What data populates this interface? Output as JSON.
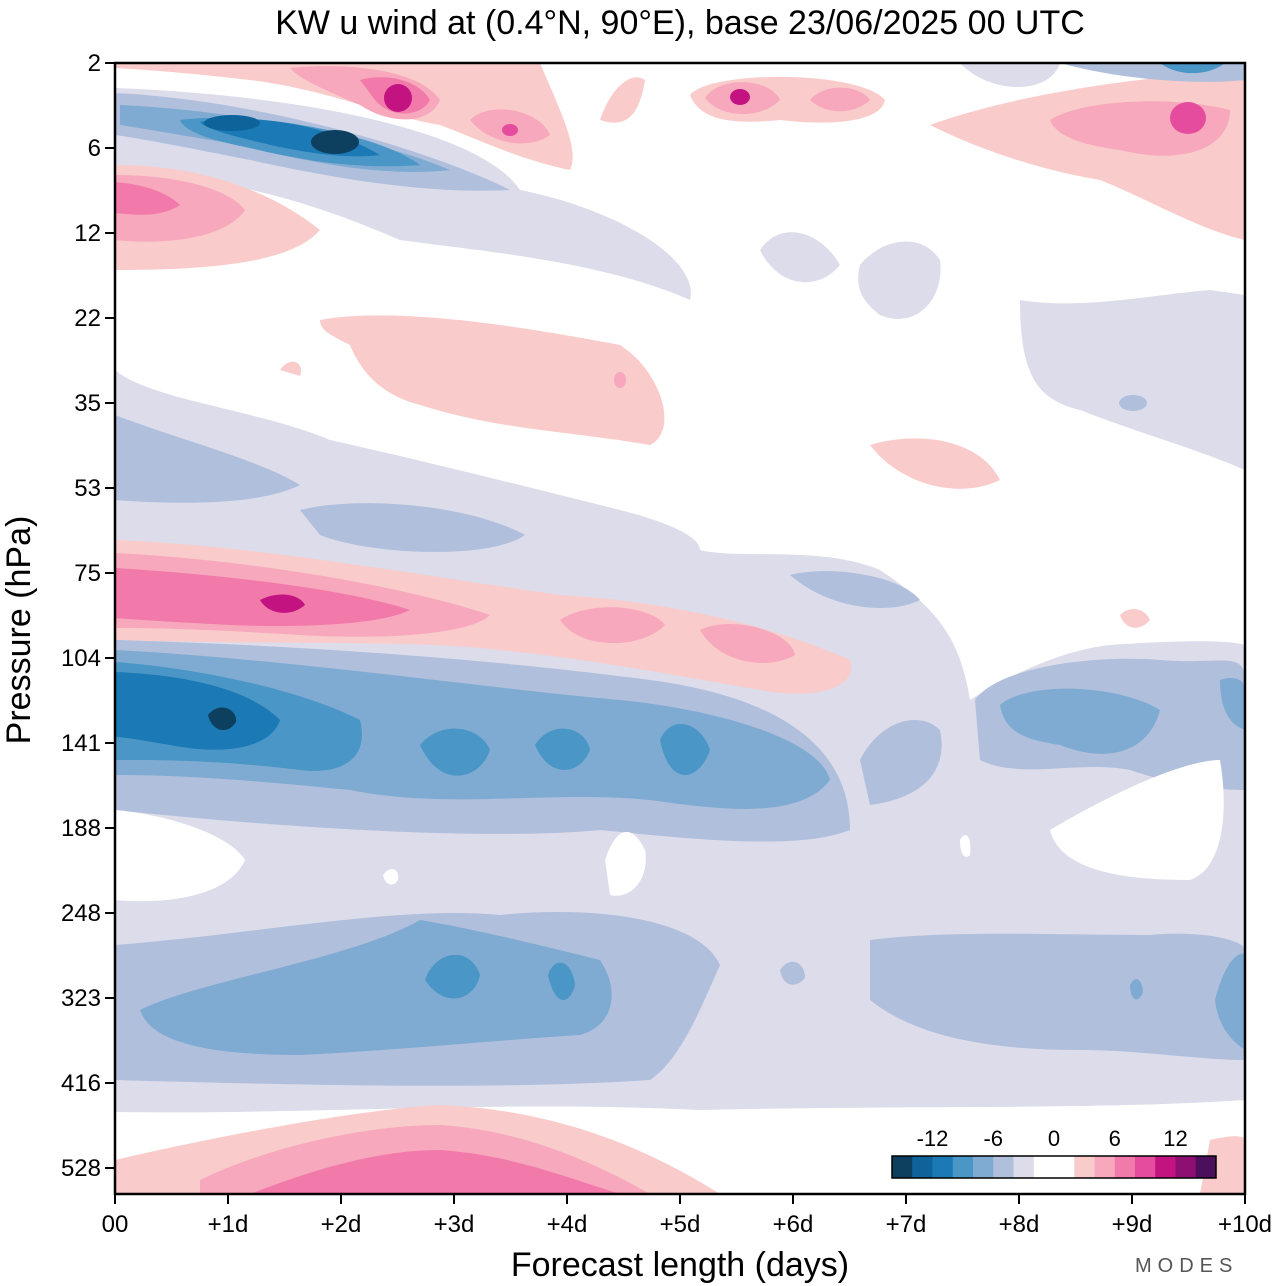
{
  "chart_data": {
    "type": "heatmap",
    "title": "KW u wind at (0.4°N, 90°E),  base 23/06/2025  00 UTC",
    "xlabel": "Forecast length (days)",
    "ylabel": "Pressure (hPa)",
    "x_ticks": [
      "00",
      "+1d",
      "+2d",
      "+3d",
      "+4d",
      "+5d",
      "+6d",
      "+7d",
      "+8d",
      "+9d",
      "+10d"
    ],
    "y_ticks": [
      "2",
      "6",
      "12",
      "22",
      "35",
      "53",
      "75",
      "104",
      "141",
      "188",
      "248",
      "323",
      "416",
      "528"
    ],
    "xlim": [
      0,
      10
    ],
    "levels": [
      -16,
      -14,
      -12,
      -10,
      -8,
      -6,
      -4,
      -2,
      0,
      2,
      4,
      6,
      8,
      10,
      12,
      14,
      16
    ],
    "colorbar_labels": [
      "-12",
      "-6",
      "0",
      "6",
      "12"
    ],
    "colors": [
      "#0d3f5e",
      "#0f639b",
      "#1b79b5",
      "#4a96c6",
      "#7fabd2",
      "#b0bfdc",
      "#dcdcea",
      "#ffffff",
      "#ffffff",
      "#f9cccb",
      "#f7a8bc",
      "#f27aaa",
      "#e54c9e",
      "#c21381",
      "#8d0f72",
      "#4b0f5b"
    ],
    "features": [
      {
        "day": 1.0,
        "level": "6",
        "value": -12
      },
      {
        "day": 2.0,
        "level": "6",
        "value": -13
      },
      {
        "day": 2.5,
        "level": "2",
        "value": 11
      },
      {
        "day": 5.5,
        "level": "2",
        "value": 10
      },
      {
        "day": 9.5,
        "level": "2",
        "value": -9
      },
      {
        "day": 9.5,
        "level": "6",
        "value": 11
      },
      {
        "day": 0.0,
        "level": "12",
        "value": 8
      },
      {
        "day": 3.0,
        "level": "22",
        "value": 3
      },
      {
        "day": 1.5,
        "level": "75",
        "value": 11
      },
      {
        "day": 4.5,
        "level": "104",
        "value": 6
      },
      {
        "day": 1.0,
        "level": "141",
        "value": -13
      },
      {
        "day": 3.0,
        "level": "141",
        "value": -9
      },
      {
        "day": 4.0,
        "level": "141",
        "value": -9
      },
      {
        "day": 5.0,
        "level": "141",
        "value": -9
      },
      {
        "day": 8.5,
        "level": "141",
        "value": -7
      },
      {
        "day": 3.0,
        "level": "323",
        "value": -9
      },
      {
        "day": 4.0,
        "level": "323",
        "value": -9
      },
      {
        "day": 2.5,
        "level": "528",
        "value": 8
      }
    ]
  },
  "brand": "MODES"
}
